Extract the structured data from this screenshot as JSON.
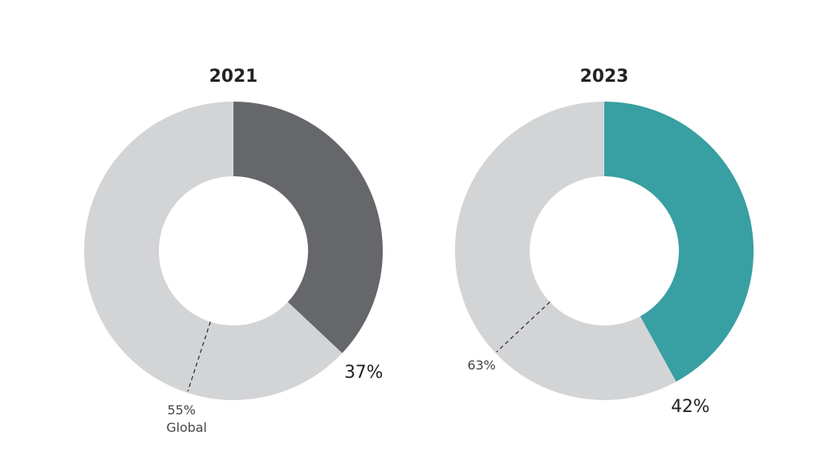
{
  "chart_data": [
    {
      "type": "donut",
      "title": "2021",
      "values": [
        37
      ],
      "value_labels": [
        "37%"
      ],
      "color": "#66676b",
      "rest_color": "#d3d4d6",
      "benchmark": {
        "value": 55,
        "label": "55%",
        "name": "Global"
      }
    },
    {
      "type": "donut",
      "title": "2023",
      "values": [
        42
      ],
      "value_labels": [
        "42%"
      ],
      "color": "#389fa2",
      "rest_color": "#d3d4d6",
      "benchmark": {
        "value": 63,
        "label": "63%"
      }
    }
  ]
}
